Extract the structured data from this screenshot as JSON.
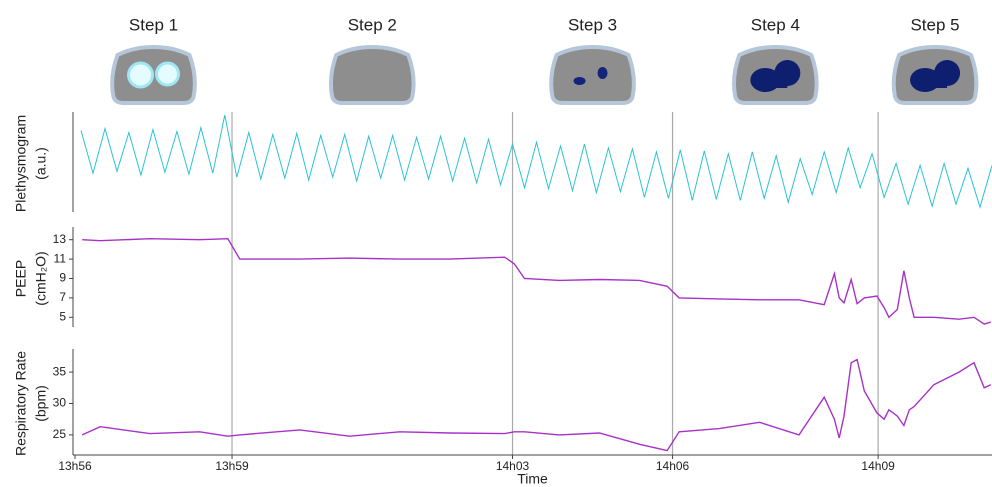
{
  "chart_data": [
    {
      "type": "line",
      "steps": [
        "Step 1",
        "Step 2",
        "Step 3",
        "Step 4",
        "Step 5"
      ],
      "ylabel": [
        "Plethysmogram",
        "(a.u.)"
      ],
      "ylim": [
        0,
        100
      ],
      "x": [
        836.6,
        836.8,
        837.0,
        837.2,
        837.4,
        837.6,
        837.8,
        838.0,
        838.2,
        838.4,
        838.6,
        838.8,
        839.0,
        839.2,
        839.4,
        839.6,
        839.8,
        840.0,
        840.2,
        840.4,
        840.6,
        840.8,
        841.0,
        841.2,
        841.4,
        841.6,
        841.8,
        842.0,
        842.2,
        842.4,
        842.6,
        842.8,
        843.0,
        843.2,
        843.4,
        843.6,
        843.8,
        844.0,
        844.2,
        844.4,
        844.6,
        844.8,
        845.0,
        845.2,
        845.4,
        845.6,
        845.8,
        846.0,
        846.2,
        846.4,
        846.6,
        846.8,
        847.0,
        847.2,
        847.4,
        847.6,
        847.8,
        848.0,
        848.2,
        848.4,
        848.6,
        848.8,
        849.0,
        849.2,
        849.4,
        849.6,
        849.8,
        850.0,
        850.2,
        850.4,
        850.6,
        850.8,
        851.0,
        851.2,
        851.4,
        851.6,
        851.8
      ],
      "series": [
        {
          "color": "#29c4d6",
          "values": [
            84,
            40,
            86,
            42,
            82,
            38,
            85,
            41,
            83,
            39,
            87,
            40,
            100,
            36,
            82,
            34,
            80,
            35,
            81,
            33,
            79,
            36,
            80,
            32,
            78,
            35,
            79,
            33,
            77,
            34,
            78,
            32,
            76,
            30,
            75,
            28,
            70,
            25,
            72,
            24,
            68,
            22,
            70,
            20,
            66,
            21,
            65,
            15,
            62,
            14,
            64,
            12,
            63,
            13,
            60,
            12,
            62,
            14,
            58,
            10,
            55,
            18,
            62,
            20,
            66,
            25,
            60,
            15,
            50,
            8,
            48,
            6,
            50,
            8,
            45,
            5,
            48
          ]
        }
      ]
    },
    {
      "type": "line",
      "ylabel": [
        "PEEP",
        "(cmH₂O)"
      ],
      "ylim": [
        4,
        14
      ],
      "yticks": [
        5,
        7,
        9,
        11,
        13
      ],
      "x": [
        836.62,
        836.92,
        837.75,
        838.58,
        839.05,
        839.25,
        840.25,
        841.08,
        841.92,
        842.75,
        843.67,
        843.83,
        844.0,
        844.58,
        845.25,
        845.92,
        846.38,
        846.58,
        847.25,
        847.92,
        848.58,
        849.0,
        849.17,
        849.25,
        849.33,
        849.45,
        849.55,
        849.67,
        849.88,
        850.0,
        850.08,
        850.22,
        850.33,
        850.42,
        850.5,
        850.83,
        851.25,
        851.5,
        851.67,
        851.78
      ],
      "series": [
        {
          "color": "#a832c8",
          "values": [
            13.0,
            12.9,
            13.1,
            13.0,
            13.1,
            11.0,
            11.0,
            11.1,
            11.0,
            11.0,
            11.2,
            10.5,
            9.0,
            8.8,
            8.9,
            8.8,
            8.2,
            7.0,
            6.9,
            6.8,
            6.8,
            6.3,
            9.5,
            7.0,
            6.5,
            8.9,
            6.4,
            7.0,
            7.2,
            6.0,
            5.0,
            5.8,
            9.8,
            7.0,
            5.0,
            5.0,
            4.8,
            5.0,
            4.3,
            4.5
          ]
        }
      ]
    },
    {
      "type": "line",
      "ylabel": [
        "Respiratory Rate",
        "(bpm)"
      ],
      "xlabel": "Time",
      "xlim": [
        836.5,
        851.8
      ],
      "xticks": [
        {
          "value": 836.5,
          "label": "13h56"
        },
        {
          "value": 839.12,
          "label": "13h59"
        },
        {
          "value": 843.8,
          "label": "14h03"
        },
        {
          "value": 846.47,
          "label": "14h06"
        },
        {
          "value": 849.9,
          "label": "14h09"
        }
      ],
      "ylim": [
        21.8,
        38.2
      ],
      "yticks": [
        25,
        30,
        35
      ],
      "x": [
        836.62,
        836.92,
        837.75,
        838.58,
        839.05,
        839.25,
        840.25,
        841.08,
        841.92,
        842.75,
        843.67,
        843.83,
        844.0,
        844.58,
        845.25,
        845.92,
        846.38,
        846.58,
        847.25,
        847.92,
        848.58,
        849.0,
        849.17,
        849.25,
        849.33,
        849.45,
        849.55,
        849.67,
        849.88,
        850.0,
        850.08,
        850.22,
        850.33,
        850.42,
        850.5,
        850.83,
        851.25,
        851.5,
        851.67,
        851.78
      ],
      "series": [
        {
          "color": "#a832c8",
          "values": [
            25,
            26.3,
            25.2,
            25.5,
            24.8,
            25.0,
            25.8,
            24.8,
            25.5,
            25.3,
            25.2,
            25.5,
            25.5,
            25.0,
            25.3,
            23.5,
            22.5,
            25.5,
            26.0,
            27.0,
            25.0,
            31.0,
            27.5,
            24.5,
            28,
            36.5,
            37.0,
            32,
            28.5,
            27.5,
            29,
            28,
            26.5,
            29,
            29.5,
            33,
            35,
            36.5,
            32.5,
            33
          ]
        }
      ]
    }
  ]
}
